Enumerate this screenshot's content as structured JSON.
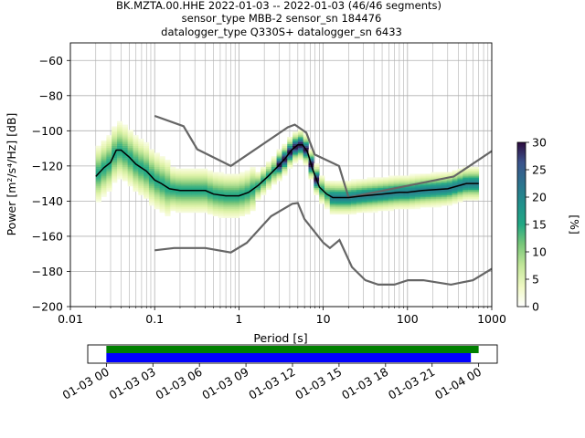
{
  "title": {
    "line1": "BK.MZTA.00.HHE   2022-01-03 -- 2022-01-03  (46/46 segments)",
    "line2": "sensor_type MBB-2 sensor_sn 184476",
    "line3": "datalogger_type Q330S+ datalogger_sn 6433"
  },
  "colors": {
    "median": "#000000",
    "noise_models": "#666666",
    "grid": "#b0b0b0",
    "coverage_data": "#008000",
    "coverage_gaps_fill": "#0000ff",
    "colormap": [
      "#ffffff",
      "#d9f0a3",
      "#78c679",
      "#1fa187",
      "#2a788e",
      "#3b528b",
      "#440154",
      "#2c0a3e"
    ]
  },
  "chart_data": [
    {
      "type": "heatmap",
      "title": "",
      "xlabel": "Period [s]",
      "ylabel": "Power [m²/s⁴/Hz] [dB]",
      "x_scale": "log",
      "xlim": [
        0.01,
        1000
      ],
      "ylim": [
        -200,
        -50
      ],
      "x_ticks": [
        0.01,
        0.1,
        1,
        10,
        100,
        1000
      ],
      "x_tick_labels": [
        "0.01",
        "0.1",
        "1",
        "10",
        "100",
        "1000"
      ],
      "y_ticks": [
        -200,
        -180,
        -160,
        -140,
        -120,
        -100,
        -80,
        -60
      ],
      "y_tick_labels": [
        "−200",
        "−180",
        "−160",
        "−140",
        "−120",
        "−100",
        "−80",
        "−60"
      ],
      "grid": true,
      "colorbar": {
        "label": "[%]",
        "range": [
          0,
          30
        ],
        "ticks": [
          0,
          5,
          10,
          15,
          20,
          25,
          30
        ],
        "tick_labels": [
          "0",
          "5",
          "10",
          "15",
          "20",
          "25",
          "30"
        ]
      },
      "series": [
        {
          "name": "",
          "kind": "median",
          "x": [
            0.02,
            0.025,
            0.03,
            0.035,
            0.04,
            0.05,
            0.06,
            0.08,
            0.1,
            0.12,
            0.15,
            0.2,
            0.3,
            0.4,
            0.5,
            0.7,
            1,
            1.3,
            1.7,
            2.2,
            2.8,
            3.5,
            4.2,
            5,
            5.7,
            6.5,
            7.5,
            9,
            11,
            13,
            15,
            20,
            30,
            50,
            80,
            100,
            150,
            300,
            500,
            700
          ],
          "y": [
            -126,
            -121,
            -118,
            -111,
            -111,
            -115,
            -119,
            -123,
            -128,
            -130,
            -133,
            -134,
            -134,
            -134,
            -136,
            -137,
            -137,
            -135,
            -131,
            -126,
            -121,
            -116,
            -111,
            -108,
            -108,
            -112,
            -122,
            -132,
            -136,
            -138,
            -138,
            -138,
            -137,
            -136,
            -135,
            -135,
            -134,
            -133,
            -130,
            -130
          ]
        },
        {
          "name": "",
          "kind": "noise_model_high",
          "x": [
            0.1,
            0.22,
            0.32,
            0.8,
            3.8,
            4.6,
            6.3,
            7.9,
            15.4,
            20,
            354.8,
            1000
          ],
          "y": [
            -91.5,
            -97.4,
            -110.5,
            -120,
            -98,
            -96.5,
            -101,
            -113.5,
            -120,
            -138,
            -126,
            -111.5
          ]
        },
        {
          "name": "",
          "kind": "noise_model_low",
          "x": [
            0.1,
            0.17,
            0.4,
            0.8,
            1.24,
            2.4,
            4.3,
            5,
            6,
            10,
            12,
            15.6,
            21.9,
            31.6,
            45,
            70,
            101,
            154,
            328,
            600,
            1000
          ],
          "y": [
            -168,
            -166.7,
            -166.7,
            -169.2,
            -163.7,
            -148.6,
            -141.5,
            -141.1,
            -150.2,
            -163.6,
            -166.7,
            -162.1,
            -177.5,
            -185,
            -187.5,
            -187.5,
            -185,
            -185,
            -187.5,
            -185,
            -178.5
          ]
        }
      ]
    },
    {
      "type": "timeline",
      "title": "",
      "x_tick_labels": [
        "01-03 00",
        "01-03 03",
        "01-03 06",
        "01-03 09",
        "01-03 12",
        "01-03 15",
        "01-03 18",
        "01-03 21",
        "01-04 00"
      ],
      "x_tick_hours": [
        0,
        3,
        6,
        9,
        12,
        15,
        18,
        21,
        24
      ],
      "xlim_hours": [
        -1.2,
        25.2
      ],
      "data_bar_hours": [
        0,
        24
      ],
      "psd_bar_hours": [
        0,
        23.5
      ]
    }
  ]
}
